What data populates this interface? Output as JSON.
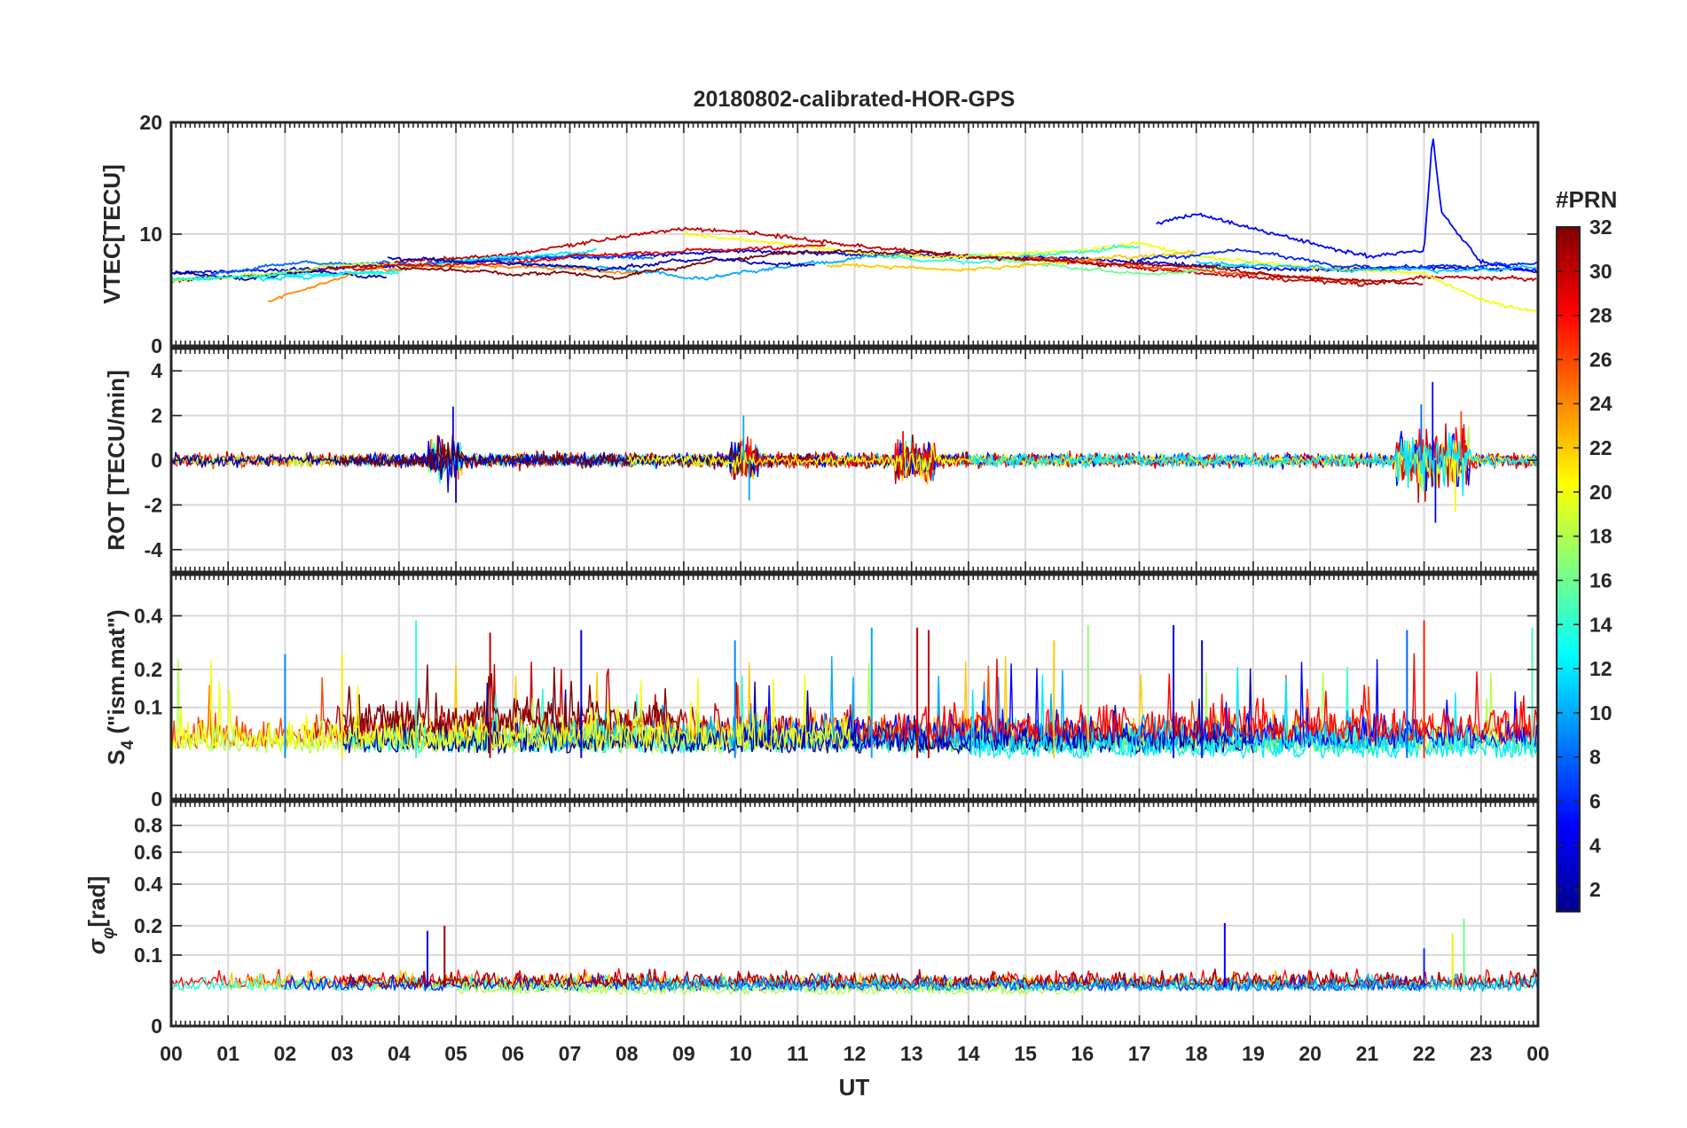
{
  "chart_data": {
    "type": "line",
    "title": "20180802-calibrated-HOR-GPS",
    "xlabel": "UT",
    "x_tick_labels": [
      "00",
      "01",
      "02",
      "03",
      "04",
      "05",
      "06",
      "07",
      "08",
      "09",
      "10",
      "11",
      "12",
      "13",
      "14",
      "15",
      "16",
      "17",
      "18",
      "19",
      "20",
      "21",
      "22",
      "23",
      "00"
    ],
    "xlim": [
      0,
      24
    ],
    "colorbar": {
      "label": "#PRN",
      "range": [
        1,
        32
      ],
      "tick_labels": [
        "2",
        "4",
        "6",
        "8",
        "10",
        "12",
        "14",
        "16",
        "18",
        "20",
        "22",
        "24",
        "26",
        "28",
        "30",
        "32"
      ],
      "colormap": "jet"
    },
    "panels": [
      {
        "name": "vtec",
        "ylabel": "VTEC[TECU]",
        "ylim": [
          0,
          20
        ],
        "y_tick_labels": [
          "0",
          "10",
          "20"
        ],
        "description_values": {
          "typical_range": [
            5,
            10
          ],
          "max_peak": 19,
          "peak_time_UT": 22.2
        },
        "series": [
          {
            "prn": 4,
            "x": [
              0,
              2,
              4,
              6,
              8,
              10,
              12,
              14,
              16,
              18,
              20,
              22,
              24
            ],
            "values": [
              6.5,
              6.8,
              7.2,
              7.8,
              8.0,
              8.5,
              8.2,
              8.0,
              7.8,
              7.2,
              6.8,
              7.0,
              6.8
            ]
          },
          {
            "prn": 5,
            "x": [
              17.3,
              18,
              19,
              20,
              21,
              22,
              22.15,
              22.3,
              22.6,
              23,
              24
            ],
            "values": [
              11,
              11.8,
              10.5,
              9.2,
              8.0,
              8.5,
              19,
              12,
              10,
              7.5,
              6.5
            ]
          },
          {
            "prn": 30,
            "x": [
              0,
              2,
              4,
              6,
              8,
              9,
              10,
              12,
              14,
              16,
              18,
              20,
              21,
              22,
              24
            ],
            "values": [
              5.8,
              6.5,
              7.5,
              8.2,
              9.8,
              10.5,
              10.2,
              9.0,
              8.0,
              7.5,
              6.5,
              5.8,
              5.5,
              6.2,
              6.0
            ]
          },
          {
            "prn": 20,
            "x": [
              9,
              10,
              11,
              12,
              13,
              14,
              15,
              16,
              17,
              18,
              20,
              22,
              22.8,
              23.5,
              24
            ],
            "values": [
              10.0,
              9.5,
              9.0,
              8.3,
              8.0,
              8.0,
              8.3,
              8.5,
              9.2,
              8.0,
              7.0,
              6.5,
              4.5,
              3.5,
              3.0
            ]
          }
        ]
      },
      {
        "name": "rot",
        "ylabel": "ROT [TECU/min]",
        "ylim": [
          -5,
          5
        ],
        "y_tick_labels": [
          "-4",
          "-2",
          "0",
          "2",
          "4"
        ],
        "description_values": {
          "typical_range": [
            -0.5,
            0.5
          ],
          "max_peak": 3.5,
          "min_peak": -2.8,
          "active_periods_UT": [
            [
              4.5,
              5.1
            ],
            [
              9.8,
              10.3
            ],
            [
              12.7,
              13.4
            ],
            [
              21.5,
              22.8
            ]
          ]
        }
      },
      {
        "name": "s4",
        "ylabel": "S4 (\"ism.mat\")",
        "ylabel_base": "S",
        "ylabel_sub": "4",
        "ylabel_rest": " (\"ism.mat\")",
        "ylim": [
          0,
          0.6
        ],
        "y_tick_labels": [
          "0",
          "0.1",
          "0.2",
          "0.4"
        ],
        "y_scale": "sqrt",
        "description_values": {
          "typical_range": [
            0,
            0.15
          ],
          "max_peak": 0.38
        }
      },
      {
        "name": "sigma_phi",
        "ylabel": "σφ[rad]",
        "ylabel_base": "σ",
        "ylabel_sub": "φ",
        "ylabel_rest": "[rad]",
        "ylim": [
          0,
          1
        ],
        "y_tick_labels": [
          "0",
          "0.1",
          "0.2",
          "0.4",
          "0.6",
          "0.8"
        ],
        "y_scale": "sqrt",
        "description_values": {
          "typical_range": [
            0.02,
            0.06
          ],
          "max_peak": 0.23
        }
      }
    ]
  }
}
